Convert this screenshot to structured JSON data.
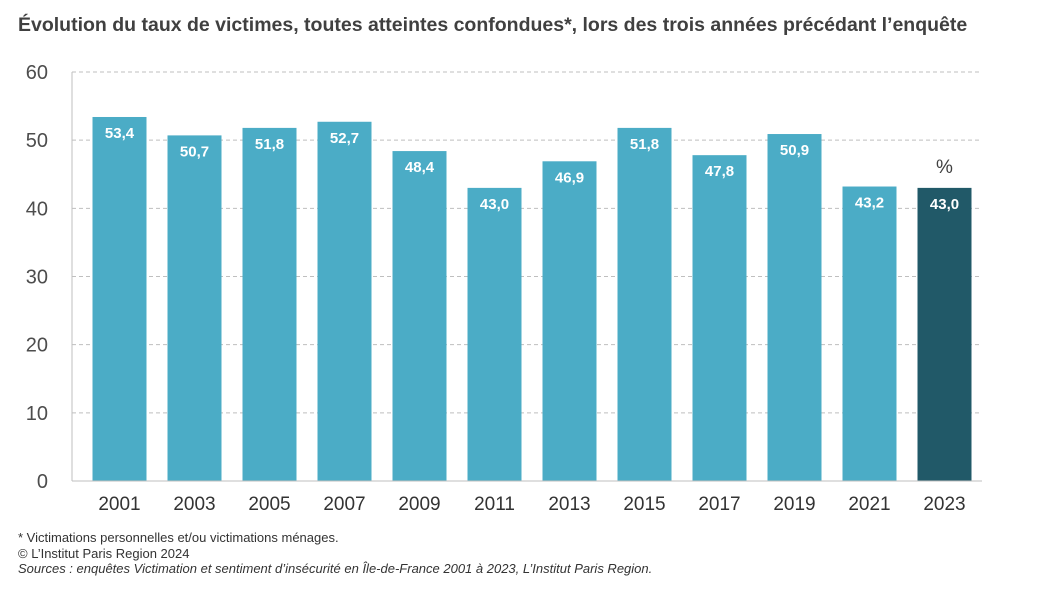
{
  "chart_data": {
    "type": "bar",
    "title": "Évolution du taux de victimes, toutes atteintes confondues*, lors des trois années précédant l’enquête",
    "unit_label": "%",
    "categories": [
      "2001",
      "2003",
      "2005",
      "2007",
      "2009",
      "2011",
      "2013",
      "2015",
      "2017",
      "2019",
      "2021",
      "2023"
    ],
    "values": [
      53.4,
      50.7,
      51.8,
      52.7,
      48.4,
      43.0,
      46.9,
      51.8,
      47.8,
      50.9,
      43.2,
      43.0
    ],
    "value_labels": [
      "53,4",
      "50,7",
      "51,8",
      "52,7",
      "48,4",
      "43,0",
      "46,9",
      "51,8",
      "47,8",
      "50,9",
      "43,2",
      "43,0"
    ],
    "ylim": [
      0,
      60
    ],
    "yticks": [
      "0",
      "10",
      "20",
      "30",
      "40",
      "50",
      "60"
    ],
    "grid": true,
    "legend": "none",
    "colors": {
      "bar": "#4bacc6",
      "highlight": "#215968",
      "grid": "#bfbfbf",
      "axis": "#bfbfbf"
    },
    "highlight_category": "2023"
  },
  "footnotes": {
    "note": "* Victimations personnelles et/ou victimations ménages.",
    "copyright": "© L’Institut Paris Region 2024",
    "sources": "Sources : enquêtes Victimation et sentiment d’insécurité en Île-de-France 2001 à 2023, L’Institut Paris Region."
  }
}
